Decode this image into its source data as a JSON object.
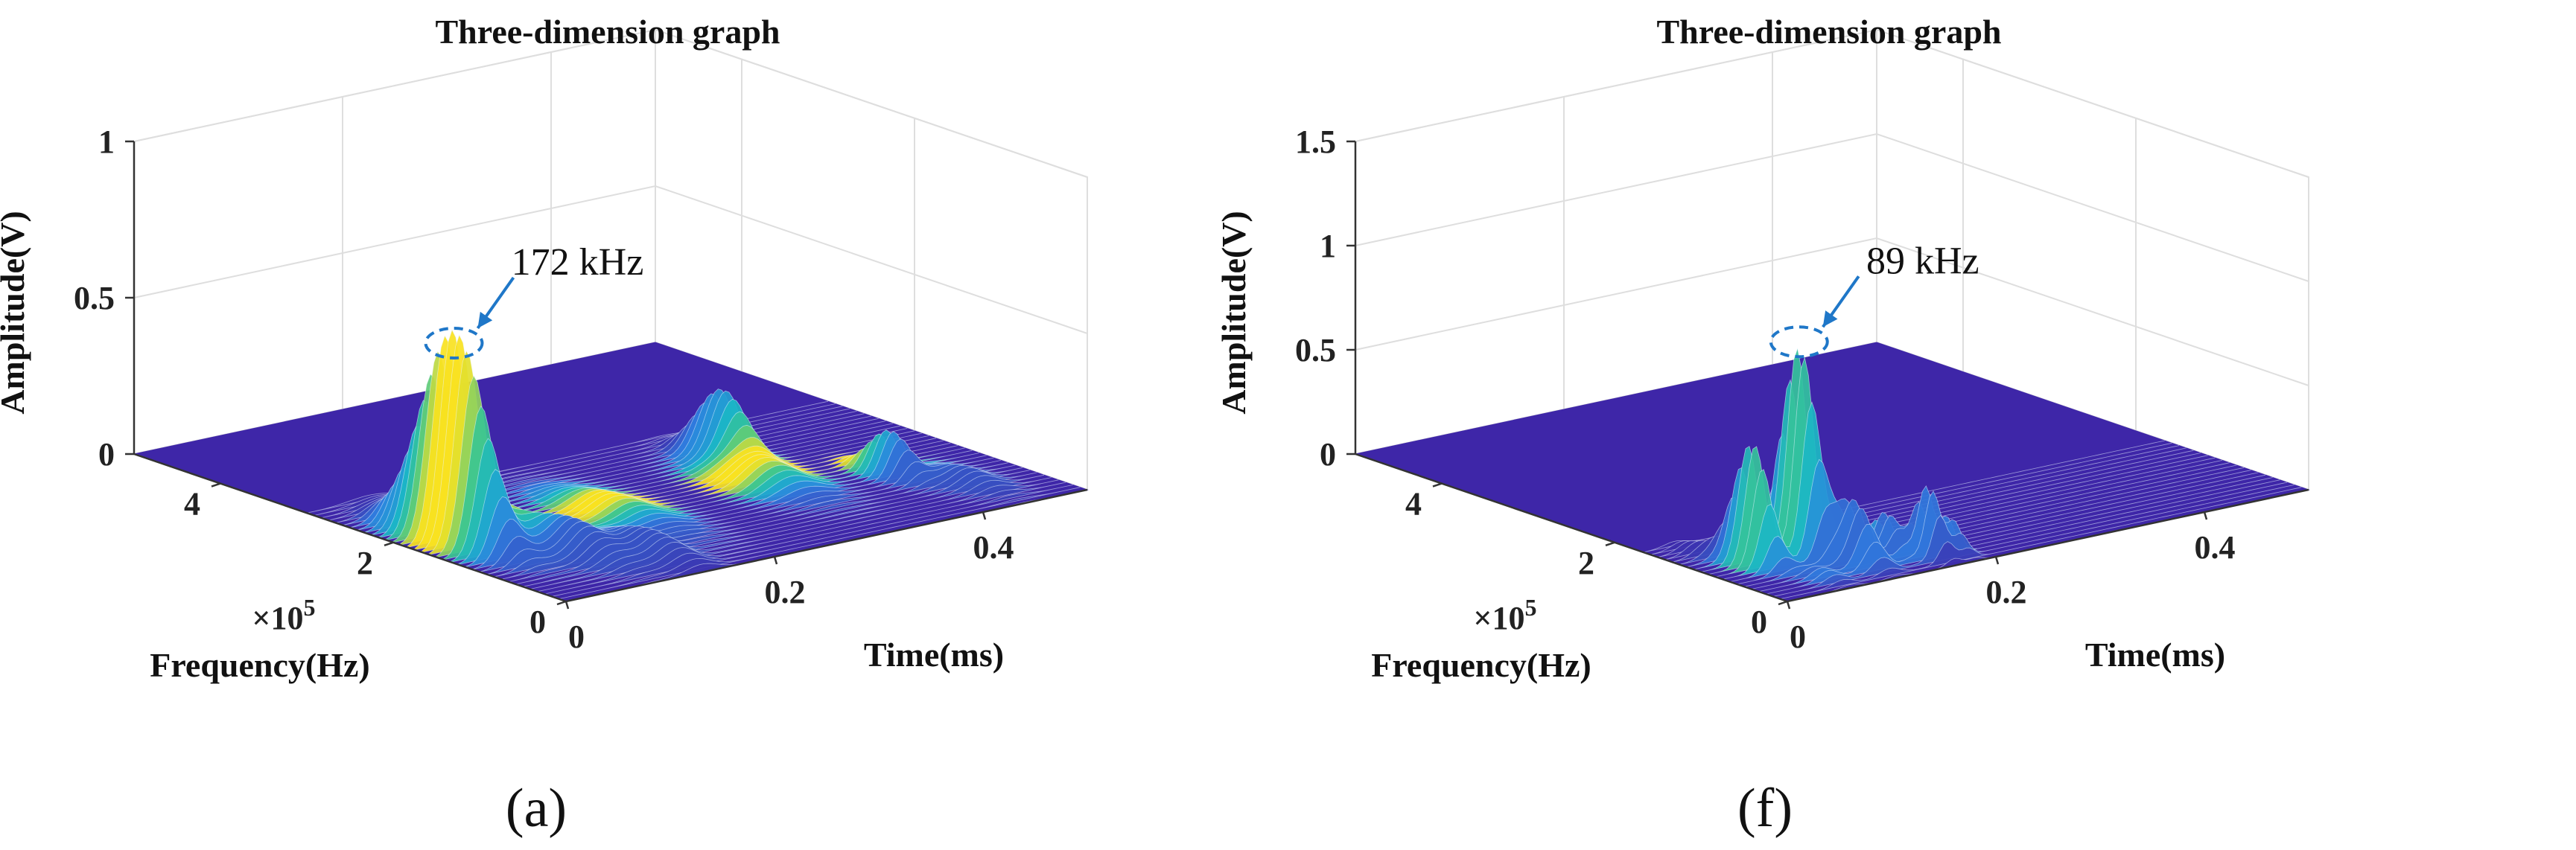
{
  "colors": {
    "floor": "#3e26a8",
    "low": "#3e26a8",
    "mid1": "#2f7fe0",
    "mid2": "#19b5c9",
    "mid3": "#3fc78a",
    "high": "#f9e221",
    "annotation": "#1f77c8"
  },
  "chart_data": [
    {
      "type": "surface3d",
      "panel_label": "(a)",
      "title": "Three-dimension graph",
      "xlabel": "Time(ms)",
      "ylabel": "Frequency(Hz)",
      "zlabel": "Amplitude(V)",
      "y_multiplier": "×10",
      "y_multiplier_exp": "5",
      "xlim": [
        0,
        0.5
      ],
      "ylim": [
        0,
        5
      ],
      "zlim": [
        0,
        1
      ],
      "x_ticks": [
        0,
        0.2,
        0.4
      ],
      "x_tick_labels": [
        "0",
        "0.2",
        "0.4"
      ],
      "y_ticks": [
        0,
        2,
        4
      ],
      "y_tick_labels": [
        "0",
        "2",
        "4"
      ],
      "z_ticks": [
        0,
        0.5,
        1
      ],
      "z_tick_labels": [
        "0",
        "0.5",
        "1"
      ],
      "annotation": {
        "text": "172 kHz",
        "x": 0.035,
        "y": 1.72,
        "z": 0.62
      },
      "peaks": [
        {
          "x": 0.035,
          "y": 1.72,
          "z": 0.62,
          "sx": 0.011,
          "sy": 0.35
        },
        {
          "x": 0.06,
          "y": 1.9,
          "z": 0.16,
          "sx": 0.018,
          "sy": 0.5
        },
        {
          "x": 0.09,
          "y": 1.0,
          "z": 0.1,
          "sx": 0.015,
          "sy": 0.4
        },
        {
          "x": 0.13,
          "y": 0.6,
          "z": 0.08,
          "sx": 0.015,
          "sy": 0.4
        },
        {
          "x": 0.18,
          "y": 1.6,
          "z": 0.06,
          "sx": 0.02,
          "sy": 0.5
        },
        {
          "x": 0.34,
          "y": 2.3,
          "z": 0.21,
          "sx": 0.013,
          "sy": 0.25
        },
        {
          "x": 0.32,
          "y": 1.6,
          "z": 0.08,
          "sx": 0.02,
          "sy": 0.4
        },
        {
          "x": 0.41,
          "y": 1.2,
          "z": 0.14,
          "sx": 0.01,
          "sy": 0.22
        },
        {
          "x": 0.44,
          "y": 0.7,
          "z": 0.05,
          "sx": 0.015,
          "sy": 0.3
        }
      ]
    },
    {
      "type": "surface3d",
      "panel_label": "(f)",
      "title": "Three-dimension graph",
      "xlabel": "Time(ms)",
      "ylabel": "Frequency(Hz)",
      "zlabel": "Amplitude(V)",
      "y_multiplier": "×10",
      "y_multiplier_exp": "5",
      "xlim": [
        0,
        0.5
      ],
      "ylim": [
        0,
        5
      ],
      "zlim": [
        0,
        1.5
      ],
      "x_ticks": [
        0,
        0.2,
        0.4
      ],
      "x_tick_labels": [
        "0",
        "0.2",
        "0.4"
      ],
      "y_ticks": [
        0,
        2,
        4
      ],
      "y_tick_labels": [
        "0",
        "2",
        "4"
      ],
      "z_ticks": [
        0,
        0.5,
        1,
        1.5
      ],
      "z_tick_labels": [
        "0",
        "0.5",
        "1",
        "1.5"
      ],
      "annotation": {
        "text": "89 kHz",
        "x": 0.085,
        "y": 0.89,
        "z": 1.0
      },
      "peaks": [
        {
          "x": 0.085,
          "y": 0.89,
          "z": 1.0,
          "sx": 0.009,
          "sy": 0.18
        },
        {
          "x": 0.045,
          "y": 0.95,
          "z": 0.58,
          "sx": 0.009,
          "sy": 0.18
        },
        {
          "x": 0.105,
          "y": 0.5,
          "z": 0.3,
          "sx": 0.01,
          "sy": 0.2
        },
        {
          "x": 0.14,
          "y": 0.55,
          "z": 0.2,
          "sx": 0.008,
          "sy": 0.15
        },
        {
          "x": 0.16,
          "y": 0.3,
          "z": 0.34,
          "sx": 0.007,
          "sy": 0.14
        },
        {
          "x": 0.18,
          "y": 0.3,
          "z": 0.17,
          "sx": 0.007,
          "sy": 0.14
        },
        {
          "x": 0.03,
          "y": 1.4,
          "z": 0.05,
          "sx": 0.01,
          "sy": 0.2
        },
        {
          "x": 0.06,
          "y": 0.3,
          "z": 0.05,
          "sx": 0.01,
          "sy": 0.2
        }
      ]
    }
  ]
}
